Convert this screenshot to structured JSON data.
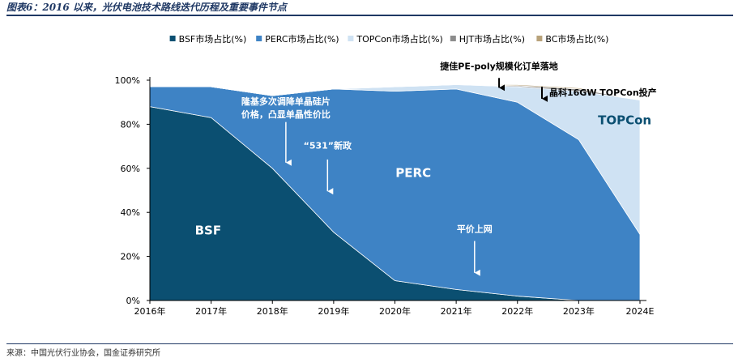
{
  "figure": {
    "title": "图表6：2016 以来，光伏电池技术路线迭代历程及重要事件节点",
    "source": "来源：中国光伏行业协会，国金证券研究所"
  },
  "chart_data": {
    "type": "area",
    "stacked": true,
    "title": "",
    "xlabel": "",
    "ylabel": "",
    "categories": [
      "2016年",
      "2017年",
      "2018年",
      "2019年",
      "2020年",
      "2021年",
      "2022年",
      "2023年",
      "2024E"
    ],
    "ylim": [
      0,
      100
    ],
    "yticks": [
      "0%",
      "20%",
      "40%",
      "60%",
      "80%",
      "100%"
    ],
    "grid": false,
    "legend_position": "top",
    "series": [
      {
        "name": "BSF市场占比(%)",
        "color": "#0b4f71",
        "values": [
          88,
          83,
          60,
          31,
          9,
          5,
          2,
          0,
          0
        ]
      },
      {
        "name": "PERC市场占比(%)",
        "color": "#3e83c5",
        "values": [
          9,
          14,
          33,
          65,
          86,
          91,
          88,
          73,
          30
        ]
      },
      {
        "name": "TOPCon市场占比(%)",
        "color": "#cfe2f3",
        "values": [
          0,
          0,
          0,
          0,
          2,
          2,
          7,
          22,
          61
        ]
      },
      {
        "name": "HJT市场占比(%)",
        "color": "#8c8c8c",
        "values": [
          0,
          0,
          0,
          0,
          0,
          0,
          0.5,
          1,
          0
        ]
      },
      {
        "name": "BC市场占比(%)",
        "color": "#b8a27a",
        "values": [
          0,
          0,
          0,
          0,
          0,
          0,
          0.5,
          0.5,
          0
        ]
      }
    ],
    "area_labels": [
      "BSF",
      "PERC",
      "TOPCon"
    ],
    "annotations": [
      {
        "text_lines": [
          "隆基多次调降单晶硅片",
          "价格，凸显单晶性价比"
        ],
        "x": 2.22,
        "y_text": 89,
        "arrow_from": 81,
        "arrow_to": 60,
        "color": "#ffffff"
      },
      {
        "text_lines": [
          "“531”新政"
        ],
        "x": 2.9,
        "y_text": 69,
        "arrow_from": 64,
        "arrow_to": 47,
        "color": "#ffffff"
      },
      {
        "text_lines": [
          "平价上网"
        ],
        "x": 5.3,
        "y_text": 31,
        "arrow_from": 27,
        "arrow_to": 10,
        "color": "#ffffff"
      },
      {
        "text_lines": [
          "捷佳PE-poly规模化订单落地"
        ],
        "x": 5.7,
        "y_text": 105,
        "arrow_from": 101,
        "arrow_to": 94,
        "color": "#000000"
      },
      {
        "text_lines": [
          "晶科16GW TOPCon投产"
        ],
        "x": 6.4,
        "y_text": 93,
        "arrow_from": 97,
        "arrow_to": 89,
        "color": "#000000"
      }
    ]
  }
}
